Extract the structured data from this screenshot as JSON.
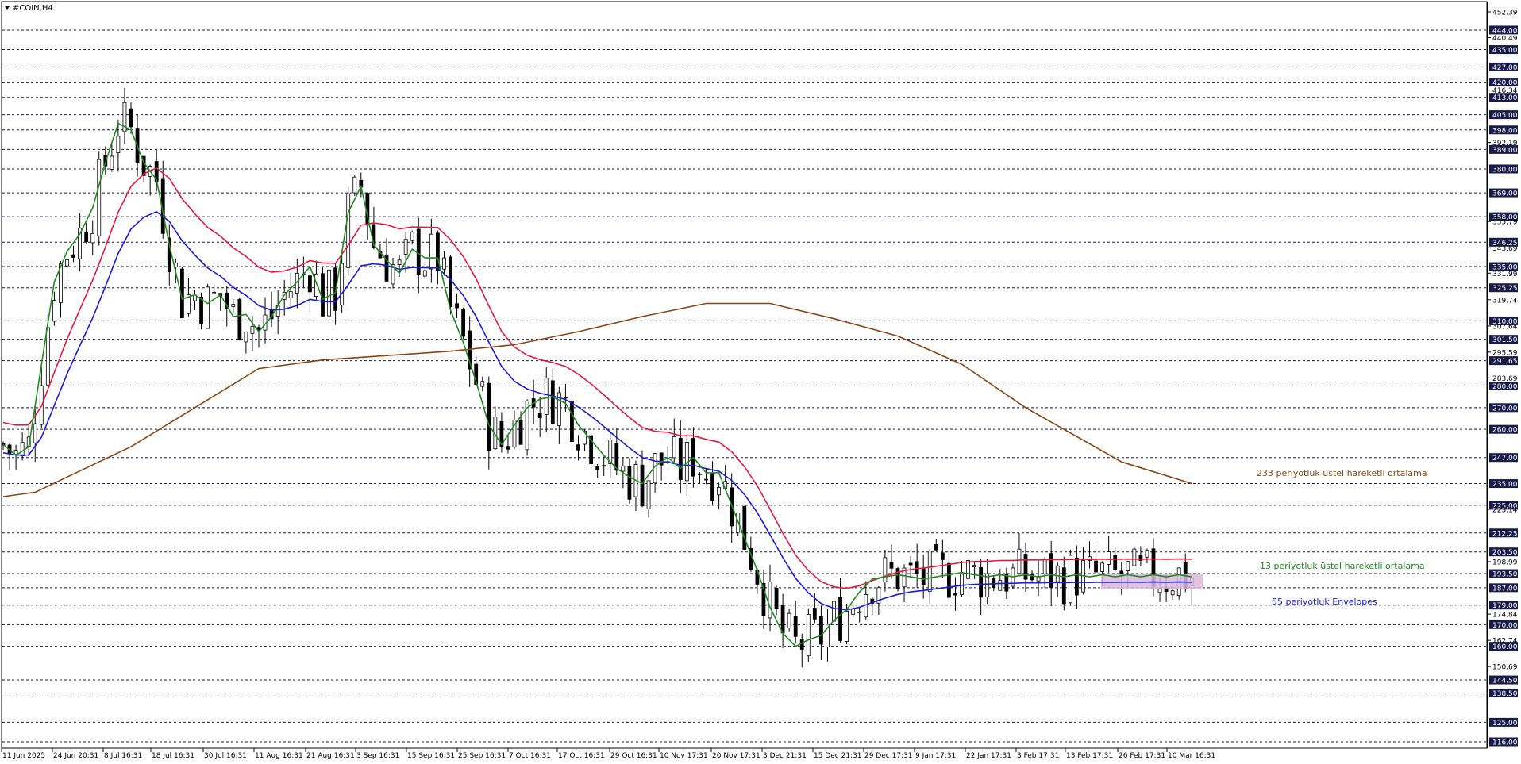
{
  "window": {
    "symbol_label": "#COIN,H4",
    "menu_icon": "triangle-down-icon"
  },
  "annotations": {
    "ema233": "233 periyotluk üstel hareketli ortalama",
    "ema13": "13 periyotluk üstel hareketli ortalama",
    "envelopes": "55 periyotluk Envelopes"
  },
  "colors": {
    "ema13": "#1f8a1f",
    "ema233": "#8b4513",
    "envelope_upper": "#e8193c",
    "envelope_lower": "#1a1adb",
    "candles": "#000000",
    "level_box": "#1a1a4a",
    "zone": "#d9b8d9"
  },
  "chart_data": {
    "type": "line",
    "title": "#COIN,H4",
    "ylim": [
      116,
      452.39
    ],
    "x_ticks": [
      "11 Jun 2025",
      "24 Jun 20:31",
      "8 Jul 16:31",
      "18 Jul 16:31",
      "30 Jul 16:31",
      "11 Aug 16:31",
      "21 Aug 16:31",
      "3 Sep 16:31",
      "15 Sep 16:31",
      "25 Sep 16:31",
      "7 Oct 16:31",
      "17 Oct 16:31",
      "29 Oct 16:31",
      "10 Nov 17:31",
      "20 Nov 17:31",
      "3 Dec 21:31",
      "15 Dec 21:31",
      "29 Dec 17:31",
      "9 Jan 17:31",
      "22 Jan 17:31",
      "3 Feb 17:31",
      "13 Feb 17:31",
      "26 Feb 17:31",
      "10 Mar 16:31"
    ],
    "y_ticks_plain": [
      "452.39",
      "440.49",
      "416.34",
      "392.19",
      "355.79",
      "343.69",
      "331.99",
      "319.74",
      "307.64",
      "295.59",
      "283.69",
      "223.14",
      "198.99",
      "174.84",
      "162.74",
      "150.69"
    ],
    "horizontal_levels": [
      "444.00",
      "435.00",
      "427.00",
      "420.00",
      "413.00",
      "405.00",
      "398.00",
      "389.00",
      "380.00",
      "369.00",
      "358.00",
      "346.25",
      "335.00",
      "325.25",
      "310.00",
      "301.50",
      "291.65",
      "280.00",
      "270.00",
      "260.00",
      "247.00",
      "235.00",
      "225.00",
      "212.25",
      "203.50",
      "193.50",
      "187.00",
      "179.00",
      "170.00",
      "160.00",
      "144.50",
      "138.50",
      "125.00",
      "116.00"
    ],
    "series": [
      {
        "name": "233 periyotluk üstel hareketli ortalama",
        "x": [
          0,
          5,
          10,
          20,
          30,
          40,
          50,
          60,
          70,
          80,
          90,
          100,
          110,
          120,
          130,
          140,
          150,
          160,
          175,
          186
        ],
        "values": [
          229,
          231,
          238,
          252,
          270,
          288,
          292,
          294,
          296,
          299,
          305,
          312,
          318,
          318,
          311,
          303,
          290,
          270,
          245,
          235
        ]
      },
      {
        "name": "13 periyotluk üstel hareketli ortalama",
        "x": [
          0,
          2,
          4,
          6,
          8,
          10,
          12,
          14,
          16,
          18,
          20,
          22,
          24,
          26,
          28,
          30,
          32,
          34,
          36,
          38,
          40,
          42,
          44,
          46,
          48,
          50,
          52,
          54,
          56,
          58,
          60,
          62,
          64,
          66,
          68,
          70,
          72,
          74,
          76,
          78,
          80,
          82,
          84,
          86,
          88,
          90,
          92,
          94,
          96,
          98,
          100,
          102,
          104,
          106,
          108,
          110,
          112,
          114,
          116,
          118,
          120,
          122,
          124,
          126,
          128,
          130,
          132,
          134,
          136,
          138,
          140,
          142,
          144,
          146,
          148,
          150,
          152,
          154,
          156,
          158,
          160,
          162,
          164,
          166,
          168,
          170,
          172,
          174,
          176,
          178,
          180,
          182,
          184,
          186
        ],
        "values": [
          253,
          248,
          252,
          290,
          328,
          342,
          350,
          362,
          383,
          401,
          398,
          383,
          375,
          345,
          320,
          322,
          318,
          322,
          312,
          313,
          305,
          312,
          322,
          328,
          335,
          320,
          323,
          360,
          372,
          345,
          338,
          332,
          343,
          339,
          339,
          315,
          300,
          282,
          262,
          253,
          262,
          270,
          274,
          275,
          272,
          262,
          255,
          248,
          242,
          238,
          235,
          243,
          247,
          242,
          247,
          240,
          240,
          225,
          210,
          195,
          178,
          166,
          160,
          163,
          165,
          172,
          177,
          185,
          191,
          192,
          193,
          192,
          191,
          192,
          193,
          194,
          193,
          192,
          193,
          192,
          193,
          192,
          193,
          192,
          193,
          192,
          193,
          192,
          193,
          192,
          193,
          192,
          193,
          192
        ]
      }
    ]
  }
}
